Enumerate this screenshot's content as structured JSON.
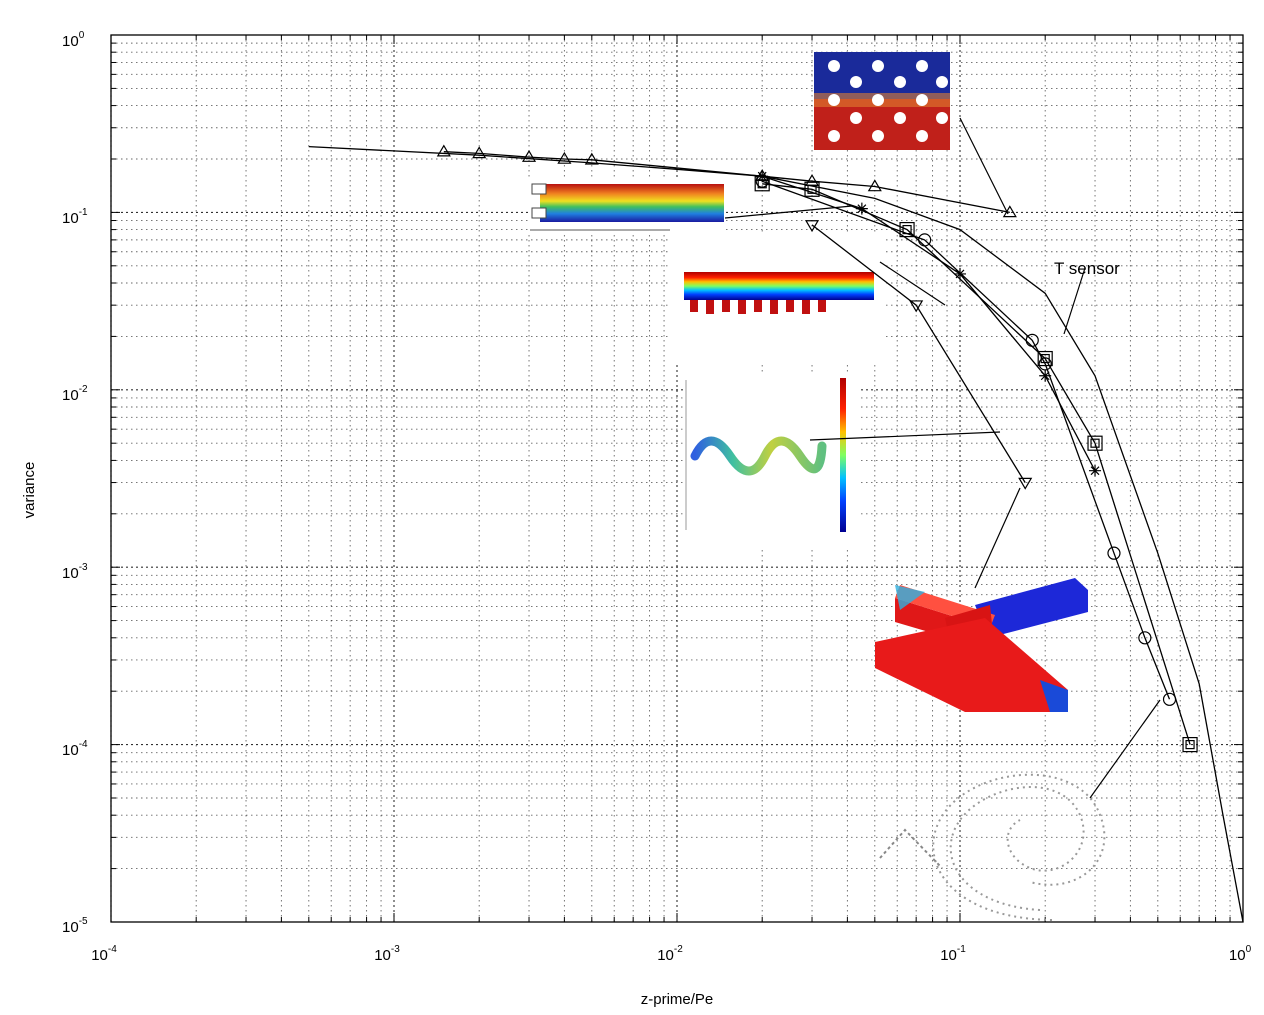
{
  "chart_data": {
    "type": "line",
    "title": "",
    "xlabel": "z-prime/Pe",
    "ylabel": "variance",
    "xscale": "log",
    "yscale": "log",
    "xlim": [
      0.0001,
      1
    ],
    "ylim": [
      1e-05,
      1
    ],
    "grid": true,
    "legend": "none",
    "x_ticks": [
      {
        "base": "10",
        "exp": "-4"
      },
      {
        "base": "10",
        "exp": "-3"
      },
      {
        "base": "10",
        "exp": "-2"
      },
      {
        "base": "10",
        "exp": "-1"
      },
      {
        "base": "10",
        "exp": "0"
      }
    ],
    "y_ticks": [
      {
        "base": "10",
        "exp": "0"
      },
      {
        "base": "10",
        "exp": "-1"
      },
      {
        "base": "10",
        "exp": "-2"
      },
      {
        "base": "10",
        "exp": "-3"
      },
      {
        "base": "10",
        "exp": "-4"
      },
      {
        "base": "10",
        "exp": "-5"
      }
    ],
    "annotations": [
      {
        "text": "T sensor",
        "x": 0.3,
        "y": 0.036
      }
    ],
    "series": [
      {
        "marker": "none",
        "x": [
          0.0005,
          0.002,
          0.005,
          0.01,
          0.02,
          0.05,
          0.1,
          0.2,
          0.3,
          0.5,
          0.7,
          0.85,
          1.0
        ],
        "y": [
          0.235,
          0.21,
          0.19,
          0.175,
          0.16,
          0.12,
          0.08,
          0.035,
          0.012,
          0.0012,
          0.00022,
          4e-05,
          1e-05
        ]
      },
      {
        "marker": "triangle",
        "x": [
          0.0015,
          0.002,
          0.003,
          0.004,
          0.005,
          0.02,
          0.03,
          0.05,
          0.15
        ],
        "y": [
          0.22,
          0.215,
          0.205,
          0.2,
          0.198,
          0.16,
          0.15,
          0.14,
          0.1
        ]
      },
      {
        "marker": "square",
        "x": [
          0.02,
          0.03,
          0.065,
          0.2,
          0.3,
          0.65
        ],
        "y": [
          0.145,
          0.135,
          0.08,
          0.015,
          0.005,
          0.0001
        ]
      },
      {
        "marker": "circle",
        "x": [
          0.02,
          0.075,
          0.18,
          0.2,
          0.35,
          0.45,
          0.55
        ],
        "y": [
          0.15,
          0.07,
          0.019,
          0.014,
          0.0012,
          0.0004,
          0.00018
        ]
      },
      {
        "marker": "star",
        "x": [
          0.02,
          0.045,
          0.1,
          0.2,
          0.3
        ],
        "y": [
          0.16,
          0.105,
          0.045,
          0.012,
          0.0035
        ]
      },
      {
        "marker": "down-triangle",
        "x": [
          0.03,
          0.07,
          0.17
        ],
        "y": [
          0.085,
          0.03,
          0.003
        ]
      }
    ],
    "insets": [
      {
        "name": "cylinder-array-mixer"
      },
      {
        "name": "parallel-lamination-mixer"
      },
      {
        "name": "staggered-herringbone-mixer"
      },
      {
        "name": "serpentine-mixer"
      },
      {
        "name": "cross-junction-mixer"
      },
      {
        "name": "spiral-mixer"
      }
    ]
  },
  "colors": {
    "line": "#000000",
    "grid": "#000000",
    "hot": "#d41818",
    "cold": "#1f2f9e"
  }
}
